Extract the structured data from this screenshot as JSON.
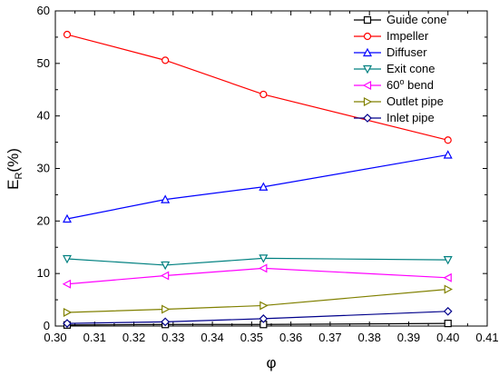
{
  "chart_data": {
    "type": "line",
    "xlabel": "φ",
    "ylabel": {
      "main": "E",
      "sub": "R",
      "suffix": "(%)"
    },
    "xlim": [
      0.3,
      0.41
    ],
    "ylim": [
      0,
      60
    ],
    "xticks": [
      "0.30",
      "0.31",
      "0.32",
      "0.33",
      "0.34",
      "0.35",
      "0.36",
      "0.37",
      "0.38",
      "0.39",
      "0.40",
      "0.41"
    ],
    "yticks": [
      "0",
      "10",
      "20",
      "30",
      "40",
      "50",
      "60"
    ],
    "grid": false,
    "legend_position": "top-right",
    "x": [
      0.303,
      0.328,
      0.353,
      0.4
    ],
    "series": [
      {
        "name": "Guide cone",
        "marker": "square",
        "color": "#000000",
        "values": [
          0.2,
          0.3,
          0.3,
          0.5
        ]
      },
      {
        "name": "Impeller",
        "marker": "circle",
        "color": "#ff0000",
        "values": [
          55.5,
          50.6,
          44.1,
          35.4
        ]
      },
      {
        "name": "Diffuser",
        "marker": "triangle-up",
        "color": "#0000ff",
        "values": [
          20.4,
          24.1,
          26.5,
          32.6
        ]
      },
      {
        "name": "Exit cone",
        "marker": "triangle-down",
        "color": "#008080",
        "values": [
          12.8,
          11.6,
          12.9,
          12.6
        ]
      },
      {
        "name": "60° bend",
        "marker": "triangle-left",
        "color": "#ff00ff",
        "values": [
          8.0,
          9.6,
          11.0,
          9.2
        ]
      },
      {
        "name": "Outlet pipe",
        "marker": "triangle-right",
        "color": "#808000",
        "values": [
          2.6,
          3.2,
          3.9,
          7.0
        ]
      },
      {
        "name": "Inlet pipe",
        "marker": "diamond",
        "color": "#00008b",
        "values": [
          0.5,
          0.8,
          1.4,
          2.8
        ]
      }
    ]
  }
}
